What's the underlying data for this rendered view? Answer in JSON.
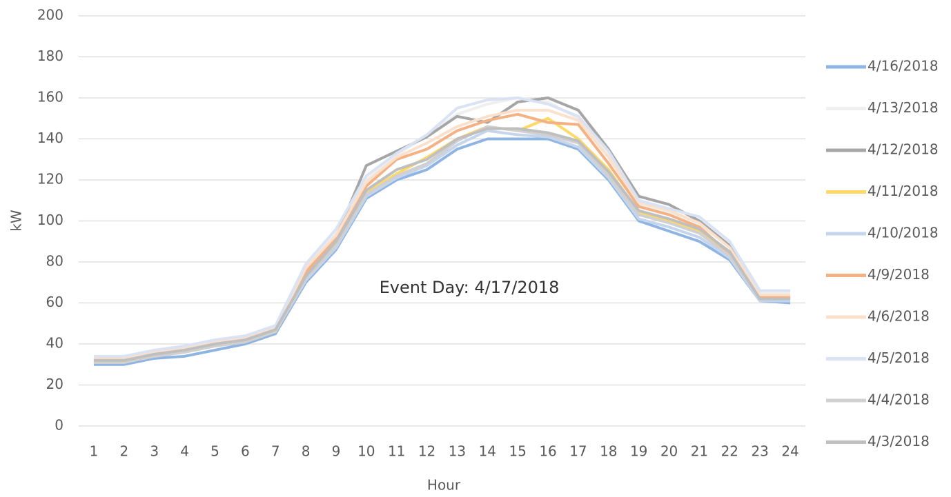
{
  "chart_data": {
    "type": "line",
    "annotation": "Event Day: 4/17/2018",
    "x_label": "Hour",
    "y_label": "kW",
    "categories": [
      "1",
      "2",
      "3",
      "4",
      "5",
      "6",
      "7",
      "8",
      "9",
      "10",
      "11",
      "12",
      "13",
      "14",
      "15",
      "16",
      "17",
      "18",
      "19",
      "20",
      "21",
      "22",
      "23",
      "24"
    ],
    "ylim": [
      0,
      200
    ],
    "yticks": [
      0,
      20,
      40,
      60,
      80,
      100,
      120,
      140,
      160,
      180,
      200
    ],
    "grid": true,
    "legend": "right",
    "series": [
      {
        "name": "4/16/2018",
        "color": "#8eb4e3",
        "values": [
          30,
          30,
          33,
          34,
          37,
          40,
          45,
          70,
          86,
          111,
          120,
          125,
          135,
          140,
          140,
          140,
          135,
          120,
          100,
          95,
          90,
          81,
          61,
          60
        ]
      },
      {
        "name": "4/13/2018",
        "color": "#efefef",
        "values": [
          33,
          33,
          36,
          38,
          41,
          43,
          48,
          78,
          95,
          120,
          132,
          142,
          152,
          157,
          160,
          158,
          150,
          132,
          108,
          104,
          98,
          88,
          65,
          65
        ]
      },
      {
        "name": "4/12/2018",
        "color": "#a6a6a6",
        "values": [
          32,
          32,
          35,
          37,
          40,
          42,
          47,
          75,
          92,
          127,
          134,
          141,
          151,
          148,
          158,
          160,
          154,
          135,
          112,
          108,
          100,
          88,
          62,
          62
        ]
      },
      {
        "name": "4/11/2018",
        "color": "#ffd966",
        "values": [
          31,
          31,
          34,
          36,
          39,
          41,
          46,
          72,
          89,
          114,
          123,
          131,
          140,
          146,
          144,
          150,
          140,
          125,
          104,
          100,
          95,
          84,
          62,
          62
        ]
      },
      {
        "name": "4/10/2018",
        "color": "#c5d5ec",
        "values": [
          31,
          31,
          34,
          36,
          39,
          41,
          46,
          71,
          87,
          112,
          121,
          127,
          137,
          144,
          142,
          141,
          136,
          121,
          101,
          97,
          92,
          82,
          61,
          61
        ]
      },
      {
        "name": "4/9/2018",
        "color": "#f4b183",
        "values": [
          32,
          32,
          35,
          37,
          40,
          42,
          47,
          75,
          91,
          117,
          130,
          135,
          144,
          149,
          152,
          148,
          147,
          128,
          107,
          103,
          97,
          84,
          63,
          63
        ]
      },
      {
        "name": "4/6/2018",
        "color": "#fbe0cc",
        "values": [
          33,
          33,
          36,
          38,
          41,
          43,
          48,
          77,
          93,
          119,
          131,
          138,
          146,
          151,
          154,
          154,
          149,
          131,
          109,
          105,
          99,
          87,
          64,
          64
        ]
      },
      {
        "name": "4/5/2018",
        "color": "#dae3f3",
        "values": [
          34,
          34,
          37,
          39,
          42,
          44,
          49,
          79,
          96,
          122,
          133,
          142,
          155,
          159,
          160,
          157,
          151,
          134,
          110,
          106,
          102,
          90,
          66,
          66
        ]
      },
      {
        "name": "4/4/2018",
        "color": "#d0d0d0",
        "values": [
          31,
          31,
          34,
          36,
          39,
          41,
          46,
          72,
          88,
          113,
          122,
          128,
          139,
          146,
          144,
          142,
          138,
          122,
          103,
          99,
          94,
          83,
          62,
          62
        ]
      },
      {
        "name": "4/3/2018",
        "color": "#bfbfbf",
        "values": [
          32,
          32,
          35,
          37,
          40,
          42,
          47,
          73,
          90,
          115,
          125,
          130,
          140,
          145,
          145,
          143,
          139,
          124,
          105,
          101,
          96,
          85,
          62,
          62
        ]
      }
    ]
  }
}
